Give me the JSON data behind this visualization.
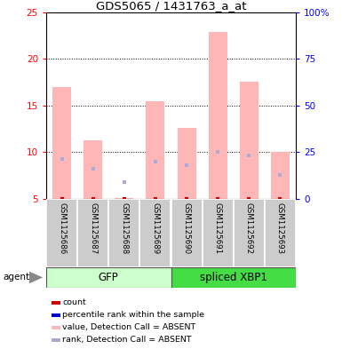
{
  "title": "GDS5065 / 1431763_a_at",
  "samples": [
    "GSM1125686",
    "GSM1125687",
    "GSM1125688",
    "GSM1125689",
    "GSM1125690",
    "GSM1125691",
    "GSM1125692",
    "GSM1125693"
  ],
  "value_absent": [
    17.0,
    11.3,
    5.1,
    15.5,
    12.6,
    22.9,
    17.6,
    10.0
  ],
  "rank_absent": [
    9.3,
    8.2,
    6.8,
    9.0,
    8.6,
    10.0,
    9.7,
    7.6
  ],
  "rank_blue_only": [
    null,
    null,
    6.8,
    null,
    null,
    null,
    null,
    null
  ],
  "count_val": 5.0,
  "ylim_left": [
    5,
    25
  ],
  "ylim_right": [
    0,
    100
  ],
  "yticks_left": [
    5,
    10,
    15,
    20,
    25
  ],
  "yticks_right": [
    0,
    25,
    50,
    75,
    100
  ],
  "ytick_labels_right": [
    "0",
    "25",
    "50",
    "75",
    "100%"
  ],
  "bar_color_absent": "#ffb6b6",
  "rank_dot_color": "#7777bb",
  "rank_absent_dot_color": "#aaaadd",
  "count_color": "#cc0000",
  "gfp_light": "#ccffcc",
  "gfp_dark": "#44dd44",
  "label_bg": "#cccccc",
  "legend_colors": [
    "#cc0000",
    "#0000cc",
    "#ffb6b6",
    "#aaaacc"
  ],
  "legend_labels": [
    "count",
    "percentile rank within the sample",
    "value, Detection Call = ABSENT",
    "rank, Detection Call = ABSENT"
  ]
}
